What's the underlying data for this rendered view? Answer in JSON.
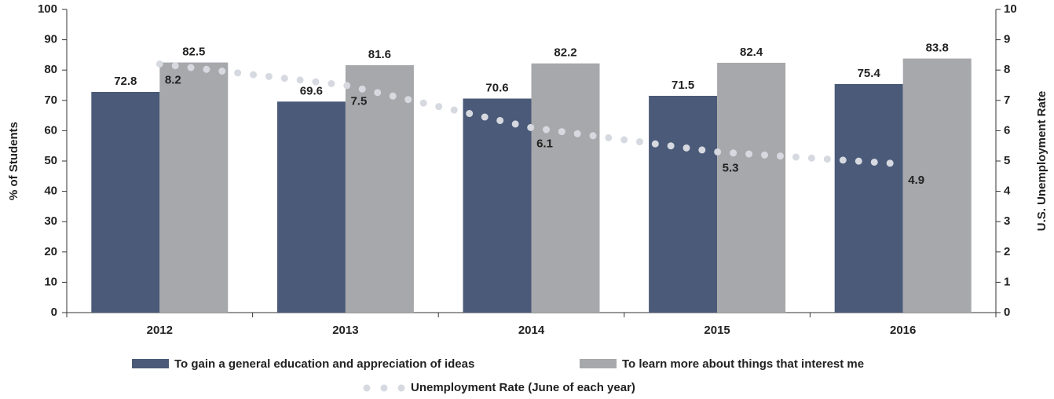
{
  "chart_data": {
    "type": "bar",
    "categories": [
      "2012",
      "2013",
      "2014",
      "2015",
      "2016"
    ],
    "series": [
      {
        "name": "To gain a general education and appreciation of ideas",
        "color": "#4a5a78",
        "values": [
          72.8,
          69.6,
          70.6,
          71.5,
          75.4
        ]
      },
      {
        "name": "To learn more about things that interest me",
        "color": "#a7a8ab",
        "values": [
          82.5,
          81.6,
          82.2,
          82.4,
          83.8
        ]
      },
      {
        "name": "Unemployment Rate (June of each year)",
        "type": "line",
        "style": "dotted",
        "axis": "y2",
        "color": "#d6d9e0",
        "values": [
          8.2,
          7.5,
          6.1,
          5.3,
          4.9
        ]
      }
    ],
    "y_label": "% of Students",
    "y2_label": "U.S. Unemployment Rate",
    "ylim": [
      0,
      100
    ],
    "yticks": [
      0,
      10,
      20,
      30,
      40,
      50,
      60,
      70,
      80,
      90,
      100
    ],
    "y2lim": [
      0,
      10
    ],
    "y2ticks": [
      0,
      1,
      2,
      3,
      4,
      5,
      6,
      7,
      8,
      9,
      10
    ],
    "legend": "bottom",
    "grid": false
  }
}
